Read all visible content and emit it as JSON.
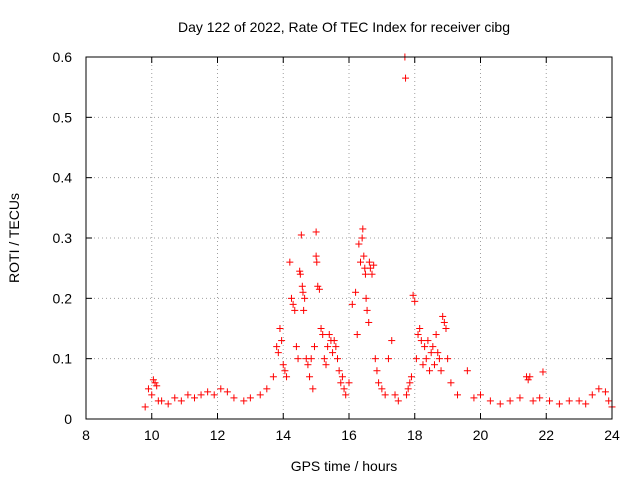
{
  "chart_data": {
    "type": "scatter",
    "title": "Day 122 of 2022, Rate Of TEC Index for receiver cibg",
    "xlabel": "GPS time / hours",
    "ylabel": "ROTI / TECUs",
    "xlim": [
      8,
      24
    ],
    "ylim": [
      0,
      0.6
    ],
    "xticks": [
      "8",
      "10",
      "12",
      "14",
      "16",
      "18",
      "20",
      "22",
      "24"
    ],
    "yticks": [
      "0",
      "0.1",
      "0.2",
      "0.3",
      "0.4",
      "0.5",
      "0.6"
    ],
    "grid": true,
    "marker": "+",
    "color": "#ff0000",
    "series": [
      {
        "x": [
          9.8,
          9.9,
          10.0,
          10.05,
          10.1,
          10.15,
          10.2,
          10.3,
          10.5,
          10.7,
          10.9,
          11.1,
          11.3,
          11.5,
          11.7,
          11.9,
          12.1,
          12.3,
          12.5,
          12.8,
          13.0,
          13.3,
          13.5,
          13.7,
          13.8,
          13.85,
          13.9,
          13.95,
          14.0,
          14.05,
          14.1,
          14.2,
          14.25,
          14.3,
          14.35,
          14.4,
          14.45,
          14.5,
          14.52,
          14.55,
          14.58,
          14.6,
          14.62,
          14.65,
          14.7,
          14.75,
          14.8,
          14.85,
          14.9,
          14.95,
          15.0,
          15.0,
          15.02,
          15.05,
          15.1,
          15.15,
          15.2,
          15.25,
          15.3,
          15.35,
          15.4,
          15.45,
          15.5,
          15.55,
          15.6,
          15.65,
          15.7,
          15.75,
          15.8,
          15.85,
          15.9,
          16.0,
          16.1,
          16.2,
          16.25,
          16.3,
          16.35,
          16.4,
          16.42,
          16.45,
          16.48,
          16.5,
          16.52,
          16.55,
          16.6,
          16.62,
          16.65,
          16.7,
          16.75,
          16.8,
          16.85,
          16.9,
          17.0,
          17.1,
          17.2,
          17.3,
          17.4,
          17.5,
          17.7,
          17.72,
          17.75,
          17.8,
          17.85,
          17.9,
          17.95,
          18.0,
          18.05,
          18.1,
          18.15,
          18.2,
          18.25,
          18.3,
          18.35,
          18.4,
          18.45,
          18.5,
          18.55,
          18.6,
          18.65,
          18.7,
          18.75,
          18.8,
          18.85,
          18.9,
          18.95,
          19.0,
          19.1,
          19.3,
          19.6,
          19.8,
          20.0,
          20.3,
          20.6,
          20.9,
          21.2,
          21.4,
          21.45,
          21.5,
          21.6,
          21.8,
          21.9,
          22.1,
          22.4,
          22.7,
          23.0,
          23.2,
          23.4,
          23.6,
          23.8,
          23.9,
          24.0
        ],
        "y": [
          0.02,
          0.05,
          0.04,
          0.065,
          0.06,
          0.055,
          0.03,
          0.03,
          0.025,
          0.035,
          0.03,
          0.04,
          0.035,
          0.04,
          0.045,
          0.04,
          0.05,
          0.045,
          0.035,
          0.03,
          0.035,
          0.04,
          0.05,
          0.07,
          0.12,
          0.11,
          0.15,
          0.13,
          0.09,
          0.08,
          0.07,
          0.26,
          0.2,
          0.19,
          0.18,
          0.12,
          0.1,
          0.245,
          0.24,
          0.305,
          0.22,
          0.21,
          0.18,
          0.2,
          0.1,
          0.09,
          0.07,
          0.1,
          0.05,
          0.12,
          0.31,
          0.27,
          0.26,
          0.22,
          0.215,
          0.15,
          0.14,
          0.1,
          0.09,
          0.12,
          0.14,
          0.13,
          0.11,
          0.13,
          0.12,
          0.1,
          0.08,
          0.06,
          0.07,
          0.05,
          0.04,
          0.06,
          0.19,
          0.21,
          0.14,
          0.29,
          0.26,
          0.3,
          0.315,
          0.27,
          0.25,
          0.24,
          0.2,
          0.18,
          0.16,
          0.26,
          0.25,
          0.24,
          0.255,
          0.1,
          0.08,
          0.06,
          0.05,
          0.04,
          0.1,
          0.13,
          0.04,
          0.03,
          0.6,
          0.565,
          0.04,
          0.05,
          0.06,
          0.07,
          0.205,
          0.195,
          0.1,
          0.14,
          0.15,
          0.13,
          0.09,
          0.12,
          0.1,
          0.13,
          0.08,
          0.11,
          0.12,
          0.09,
          0.14,
          0.11,
          0.1,
          0.08,
          0.17,
          0.16,
          0.15,
          0.1,
          0.06,
          0.04,
          0.08,
          0.035,
          0.04,
          0.03,
          0.025,
          0.03,
          0.035,
          0.07,
          0.065,
          0.07,
          0.03,
          0.035,
          0.078,
          0.03,
          0.025,
          0.03,
          0.03,
          0.025,
          0.04,
          0.05,
          0.045,
          0.03,
          0.02
        ]
      }
    ]
  }
}
